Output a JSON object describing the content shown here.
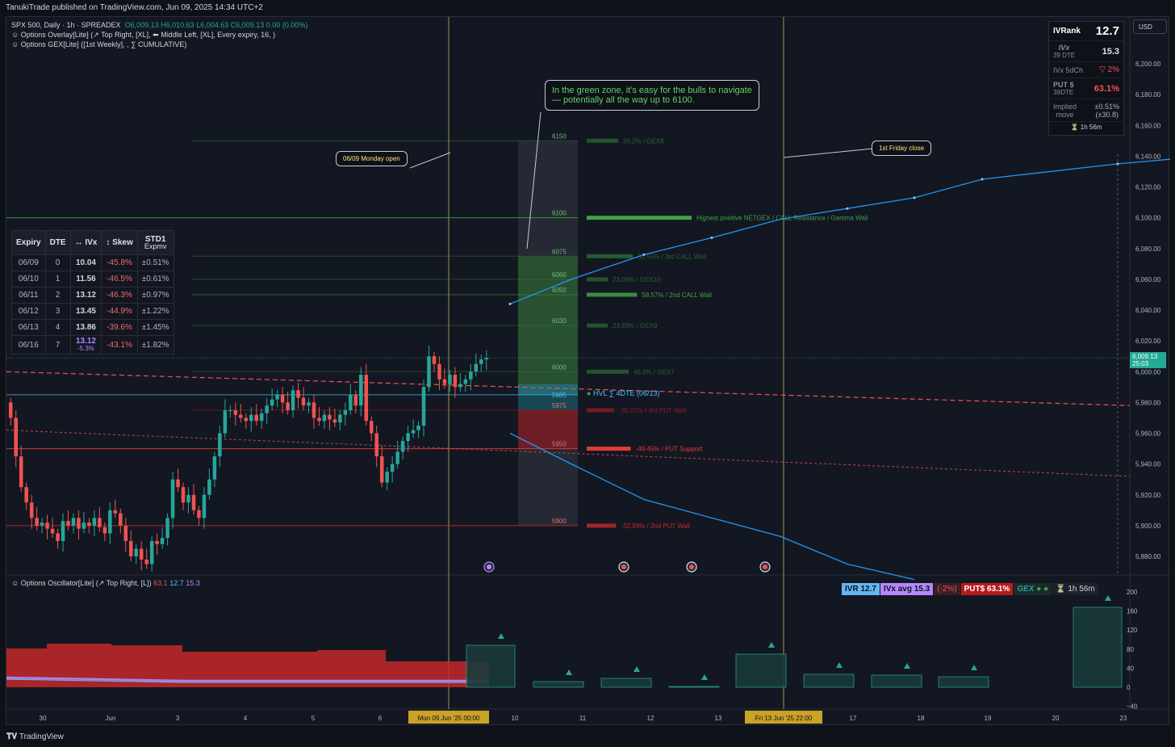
{
  "topbar": {
    "publish_line": "TanukiTrade published on TradingView.com, Jun 09, 2025 14:34 UTC+2"
  },
  "legend": {
    "symbol": "SPX 500, Daily · 1h · SPREADEX",
    "ohlc_o": "O6,009.13",
    "ohlc_h": "H6,010.63",
    "ohlc_l": "L6,004.63",
    "ohlc_c": "C6,009.13",
    "ohlc_chg": "0.00 (0.00%)",
    "overlay": "Options Overlay[Lite] (↗ Top Right, [XL], ⬅ Middle Left, [XL], Every expiry, 16, )",
    "gex": "Options GEX[Lite] ([1st Weekly], , ∑ CUMULATIVE)"
  },
  "currency": "USD",
  "price_axis": {
    "ticks": [
      "6,200.00",
      "6,180.00",
      "6,160.00",
      "6,140.00",
      "6,120.00",
      "6,100.00",
      "6,080.00",
      "6,060.00",
      "6,040.00",
      "6,020.00",
      "6,000.00",
      "5,980.00",
      "5,960.00",
      "5,940.00",
      "5,920.00",
      "5,900.00",
      "5,880.00"
    ],
    "tick_values": [
      6200,
      6180,
      6160,
      6140,
      6120,
      6100,
      6080,
      6060,
      6040,
      6020,
      6000,
      5980,
      5960,
      5940,
      5920,
      5900,
      5880
    ],
    "last_price": "6,009.13",
    "countdown": "25:03",
    "last_price_color": "#22ab94"
  },
  "time_axis": {
    "ticks": [
      "30",
      "Jun",
      "3",
      "4",
      "5",
      "6",
      "10",
      "11",
      "12",
      "13",
      "17",
      "18",
      "19",
      "20",
      "23"
    ],
    "highlight_1": "Mon 09 Jun '25   00:00",
    "highlight_2": "Fri 13 Jun '25   22:00"
  },
  "callouts": {
    "monday_open": "06/09 Monday open",
    "friday_close": "1st Friday close",
    "green_zone_line1": "In the green zone, it's easy for the bulls to navigate",
    "green_zone_line2": "— potentially all the way up to 6100."
  },
  "expiry_table": {
    "headers": [
      "Expiry",
      "DTE",
      "↔ IVx",
      "↕ Skew",
      "STD1",
      "Expmv"
    ],
    "rows": [
      {
        "expiry": "06/09",
        "dte": "0",
        "ivx": "10.04",
        "ivx_sub": "",
        "skew": "-45.8%",
        "std": "±0.51%"
      },
      {
        "expiry": "06/10",
        "dte": "1",
        "ivx": "11.56",
        "ivx_sub": "",
        "skew": "-46.5%",
        "std": "±0.61%"
      },
      {
        "expiry": "06/11",
        "dte": "2",
        "ivx": "13.12",
        "ivx_sub": "",
        "skew": "-46.3%",
        "std": "±0.97%"
      },
      {
        "expiry": "06/12",
        "dte": "3",
        "ivx": "13.45",
        "ivx_sub": "",
        "skew": "-44.9%",
        "std": "±1.22%"
      },
      {
        "expiry": "06/13",
        "dte": "4",
        "ivx": "13.86",
        "ivx_sub": "",
        "skew": "-39.6%",
        "std": "±1.45%"
      },
      {
        "expiry": "06/16",
        "dte": "7",
        "ivx": "13.12",
        "ivx_sub": "-5.3%",
        "skew": "-43.1%",
        "std": "±1.82%"
      }
    ]
  },
  "ivr_box": {
    "ivrank_label": "IVRank",
    "ivrank_value": "12.7",
    "ivx_label": "IVx",
    "ivx_dte": "39 DTE",
    "ivx_value": "15.3",
    "ivx5d_label": "IVx 5dCh",
    "ivx5d_value": "▽ 2%",
    "put_label": "PUT $",
    "put_dte": "39DTE",
    "put_value": "63.1%",
    "implied_label_1": "Implied",
    "implied_label_2": "move",
    "implied_value_1": "±0.51%",
    "implied_value_2": "(±30.8)",
    "timer": "⏳ 1h 56m"
  },
  "gex_levels": [
    {
      "strike": "6150",
      "label": "35.2% / GEX8",
      "value": 6150,
      "color": "#2e7d32",
      "opacity": 0.6,
      "bar": 0.3
    },
    {
      "strike": "6100",
      "label": "Highest positive NETGEX / CALL Resistance / Gamma Wall",
      "value": 6100,
      "color": "#43a047",
      "opacity": 1,
      "bar": 1.0
    },
    {
      "strike": "6075",
      "label": "52.55% / 3rd CALL Wall",
      "value": 6075,
      "color": "#2e7d32",
      "opacity": 0.7,
      "bar": 0.44
    },
    {
      "strike": "6060",
      "label": "23.09% / GEX10",
      "value": 6060,
      "color": "#2e7d32",
      "opacity": 0.6,
      "bar": 0.2
    },
    {
      "strike": "6050",
      "label": "58.57% / 2nd CALL Wall",
      "value": 6050,
      "color": "#43a047",
      "opacity": 0.85,
      "bar": 0.48
    },
    {
      "strike": "6030",
      "label": "23.83% / GEX9",
      "value": 6030,
      "color": "#2e7d32",
      "opacity": 0.6,
      "bar": 0.2
    },
    {
      "strike": "6000",
      "label": "46.9% / GEX7",
      "value": 6000,
      "color": "#2e7d32",
      "opacity": 0.6,
      "bar": 0.4
    },
    {
      "strike": "5975",
      "label": "-30.02% / 3rd PUT Wall",
      "value": 5975,
      "color": "#b71c1c",
      "opacity": 0.6,
      "bar": 0.26
    },
    {
      "strike": "5950",
      "label": "-49.45% / PUT Support",
      "value": 5950,
      "color": "#e53935",
      "opacity": 1,
      "bar": 0.42
    },
    {
      "strike": "5900",
      "label": "-32.99% / 2nd PUT Wall",
      "value": 5900,
      "color": "#c62828",
      "opacity": 0.8,
      "bar": 0.28
    }
  ],
  "hvl": {
    "strike": "5985",
    "label": "HVL ∑ 4DTE (06/13)",
    "value": 5985
  },
  "oscillator": {
    "legend": "Options Oscillator[Lite] (↗ Top Right, [L])",
    "v1": "63.1",
    "v2": "12.7",
    "v3": "15.3",
    "badge_ivr": "IVR 12.7",
    "badge_ivx": "IVx avg 15.3",
    "badge_chg": "(-2%)",
    "badge_put": "PUT$ 63.1%",
    "badge_gex": "GEX",
    "badge_timer": "⏳ 1h 56m",
    "axis": [
      "200",
      "160",
      "120",
      "80",
      "40",
      "0",
      "−40"
    ],
    "axis_values": [
      200,
      160,
      120,
      80,
      40,
      0,
      -40
    ]
  },
  "footer": {
    "brand": "TradingView"
  },
  "colors": {
    "bull": "#26a69a",
    "bear": "#ef5350",
    "accent_blue": "#2196f3",
    "yellow": "#ffeb3b"
  }
}
